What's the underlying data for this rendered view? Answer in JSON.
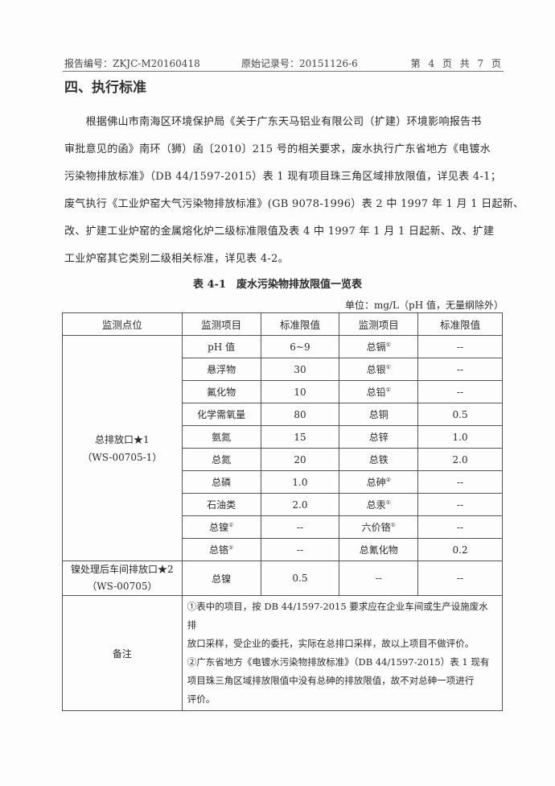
{
  "header": {
    "report_no": "报告编号：ZKJC-M20160418",
    "record_no": "原始记录号：20151126-6",
    "page": "第 4 页 共 7 页"
  },
  "section_title": "四、执行标准",
  "paragraph_lines": [
    "　　根据佛山市南海区环境保护局《关于广东天马铝业有限公司（扩建）环境影响报告书",
    "审批意见的函》南环（狮）函〔2010〕215 号的相关要求，废水执行广东省地方《电镀水",
    "污染物排放标准》（DB 44/1597-2015）表 1 现有项目珠三角区域排放限值，详见表 4-1；",
    "废气执行《工业炉窑大气污染物排放标准》(GB 9078-1996）表 2 中 1997 年 1 月 1 日起新、",
    "改、扩建工业炉窑的金属熔化炉二级标准限值及表 4 中 1997 年 1 月 1 日起新、改、扩建",
    "工业炉窑其它类别二级相关标准，详见表 4-2。"
  ],
  "table": {
    "title": "表 4-1　废水污染物排放限值一览表",
    "unit": "单位：mg/L（pH 值，无量纲除外）",
    "headers": [
      "监测点位",
      "监测项目",
      "标准限值",
      "监测项目",
      "标准限值"
    ],
    "site1": {
      "name": "总排放口★1",
      "code": "（WS-00705-1）"
    },
    "rows": [
      {
        "item1": "pH 值",
        "sup1": "",
        "val1": "6~9",
        "item2": "总镉",
        "sup2": "①",
        "val2": "--"
      },
      {
        "item1": "悬浮物",
        "sup1": "",
        "val1": "30",
        "item2": "总银",
        "sup2": "①",
        "val2": "--"
      },
      {
        "item1": "氟化物",
        "sup1": "",
        "val1": "10",
        "item2": "总铅",
        "sup2": "①",
        "val2": "--"
      },
      {
        "item1": "化学需氧量",
        "sup1": "",
        "val1": "80",
        "item2": "总铜",
        "sup2": "",
        "val2": "0.5"
      },
      {
        "item1": "氨氮",
        "sup1": "",
        "val1": "15",
        "item2": "总锌",
        "sup2": "",
        "val2": "1.0"
      },
      {
        "item1": "总氮",
        "sup1": "",
        "val1": "20",
        "item2": "总铁",
        "sup2": "",
        "val2": "2.0"
      },
      {
        "item1": "总磷",
        "sup1": "",
        "val1": "1.0",
        "item2": "总砷",
        "sup2": "②",
        "val2": "--"
      },
      {
        "item1": "石油类",
        "sup1": "",
        "val1": "2.0",
        "item2": "总汞",
        "sup2": "①",
        "val2": "--"
      },
      {
        "item1": "总镍",
        "sup1": "①",
        "val1": "--",
        "item2": "六价铬",
        "sup2": "①",
        "val2": "--"
      },
      {
        "item1": "总铬",
        "sup1": "①",
        "val1": "--",
        "item2": "总氰化物",
        "sup2": "",
        "val2": "0.2"
      }
    ],
    "site2": {
      "name": "镍处理后车间排放口★2",
      "code": "（WS-00705）",
      "item1": "总镍",
      "val1": "0.5",
      "item2": "--",
      "val2": "--"
    },
    "remarks": {
      "label": "备注",
      "lines": [
        "①表中的项目，按 DB 44/1597-2015 要求应在企业车间或生产设施废水排",
        "放口采样，受企业的委托，实际在总排口采样，故以上项目不做评价。",
        "②广东省地方《电镀水污染物排放标准》（DB 44/1597-2015）表 1 现有",
        "项目珠三角区域排放限值中没有总砷的排放限值，故不对总砷一项进行",
        "评价。"
      ]
    }
  }
}
